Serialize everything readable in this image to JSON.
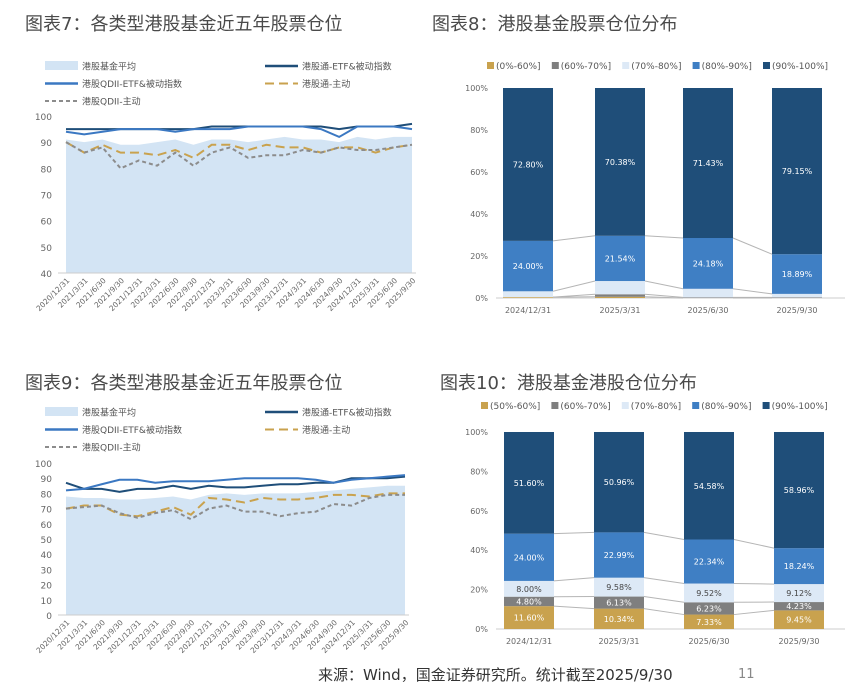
{
  "titles": {
    "chart7": "图表7：各类型港股基金近五年股票仓位",
    "chart8": "图表8：港股基金股票仓位分布",
    "chart9": "图表9：各类型港股基金近五年股票仓位",
    "chart10": "图表10：港股基金港股仓位分布"
  },
  "footer": {
    "source": "来源：Wind，国金证券研究所。统计截至2025/9/30",
    "page_number": "11"
  },
  "colors": {
    "avg_area": "#d3e4f4",
    "hkc_etf": "#1f4e79",
    "qdii_etf": "#3b78c2",
    "hkc_active": "#c9a24e",
    "qdii_active": "#8c8c8c",
    "seg_dark": "#1f4e79",
    "seg_mid": "#3f7fc4",
    "seg_light": "#dde9f6",
    "seg_gray": "#7f7f7f",
    "seg_gold": "#c9a24e"
  },
  "chart_data": [
    {
      "type": "line",
      "title": "图表7：各类型港股基金近五年股票仓位",
      "x": [
        "2020/12/31",
        "2021/3/31",
        "2021/6/30",
        "2021/9/30",
        "2021/12/31",
        "2022/3/31",
        "2022/6/30",
        "2022/9/30",
        "2022/12/31",
        "2023/3/31",
        "2023/6/30",
        "2023/9/30",
        "2023/12/31",
        "2024/3/31",
        "2024/6/30",
        "2024/9/30",
        "2024/12/31",
        "2025/3/31",
        "2025/6/30",
        "2025/9/30"
      ],
      "ylim": [
        40,
        100
      ],
      "yticks": [
        40,
        50,
        60,
        70,
        80,
        90,
        100
      ],
      "legend": "top",
      "series": [
        {
          "name": "港股基金平均",
          "style": "area",
          "values": [
            91,
            90,
            91,
            89,
            89,
            90,
            91,
            89,
            91,
            91,
            90,
            91,
            92,
            91,
            91,
            90,
            92,
            91,
            92,
            92
          ]
        },
        {
          "name": "港股通-ETF&被动指数",
          "style": "solid",
          "values": [
            95,
            95,
            95,
            95,
            95,
            95,
            95,
            95,
            96,
            96,
            96,
            96,
            96,
            96,
            96,
            95,
            96,
            96,
            96,
            97
          ]
        },
        {
          "name": "港股QDII-ETF&被动指数",
          "style": "solid",
          "values": [
            94,
            93,
            94,
            95,
            95,
            95,
            94,
            95,
            95,
            95,
            96,
            96,
            96,
            96,
            95,
            92,
            96,
            96,
            96,
            95
          ]
        },
        {
          "name": "港股通-主动",
          "style": "long-dash",
          "values": [
            90,
            86,
            89,
            86,
            86,
            85,
            87,
            84,
            89,
            89,
            87,
            89,
            88,
            88,
            86,
            88,
            88,
            86,
            88,
            89
          ]
        },
        {
          "name": "港股QDII-主动",
          "style": "short-dash",
          "values": [
            90,
            86,
            88,
            80,
            83,
            81,
            86,
            81,
            86,
            88,
            84,
            85,
            85,
            87,
            86,
            88,
            87,
            87,
            88,
            89
          ]
        }
      ]
    },
    {
      "type": "bar",
      "stacked": true,
      "title": "图表8：港股基金股票仓位分布",
      "categories": [
        "2024/12/31",
        "2025/3/31",
        "2025/6/30",
        "2025/9/30"
      ],
      "ylim": [
        0,
        100
      ],
      "yticks": [
        "0%",
        "20%",
        "40%",
        "60%",
        "80%",
        "100%"
      ],
      "legend": "top",
      "series": [
        {
          "name": "(0%-60%]",
          "values": [
            0.4,
            0.58,
            0,
            0
          ],
          "labels": [
            "",
            "",
            "",
            ""
          ]
        },
        {
          "name": "(60%-70%]",
          "values": [
            0,
            1.2,
            0.3,
            0.3
          ],
          "labels": [
            "",
            "",
            "",
            ""
          ]
        },
        {
          "name": "(70%-80%]",
          "values": [
            2.8,
            6.3,
            4.09,
            1.66
          ],
          "labels": [
            "",
            "",
            "",
            ""
          ]
        },
        {
          "name": "(80%-90%]",
          "values": [
            24.0,
            21.54,
            24.18,
            18.89
          ],
          "labels": [
            "24.00%",
            "21.54%",
            "24.18%",
            "18.89%"
          ]
        },
        {
          "name": "(90%-100%]",
          "values": [
            72.8,
            70.38,
            71.43,
            79.15
          ],
          "labels": [
            "72.80%",
            "70.38%",
            "71.43%",
            "79.15%"
          ]
        }
      ]
    },
    {
      "type": "line",
      "title": "图表9：各类型港股基金近五年股票仓位",
      "x": [
        "2020/12/31",
        "2021/3/31",
        "2021/6/30",
        "2021/9/30",
        "2021/12/31",
        "2022/3/31",
        "2022/6/30",
        "2022/9/30",
        "2022/12/31",
        "2023/3/31",
        "2023/6/30",
        "2023/9/30",
        "2023/12/31",
        "2024/3/31",
        "2024/6/30",
        "2024/9/30",
        "2024/12/31",
        "2025/3/31",
        "2025/6/30",
        "2025/9/30"
      ],
      "ylim": [
        0,
        100
      ],
      "yticks": [
        0,
        10,
        20,
        30,
        40,
        50,
        60,
        70,
        80,
        90,
        100
      ],
      "legend": "top",
      "series": [
        {
          "name": "港股基金平均",
          "style": "area",
          "values": [
            78,
            77,
            77,
            76,
            76,
            77,
            78,
            76,
            79,
            80,
            79,
            80,
            80,
            80,
            81,
            82,
            83,
            84,
            85,
            85
          ]
        },
        {
          "name": "港股通-ETF&被动指数",
          "style": "solid",
          "values": [
            87,
            83,
            83,
            81,
            83,
            83,
            85,
            83,
            85,
            84,
            84,
            85,
            86,
            86,
            87,
            87,
            90,
            90,
            90,
            91
          ]
        },
        {
          "name": "港股QDII-ETF&被动指数",
          "style": "solid",
          "values": [
            82,
            83,
            86,
            89,
            89,
            87,
            88,
            88,
            88,
            89,
            90,
            90,
            90,
            90,
            89,
            87,
            89,
            90,
            91,
            92
          ]
        },
        {
          "name": "港股通-主动",
          "style": "long-dash",
          "values": [
            70,
            72,
            72,
            66,
            65,
            68,
            71,
            66,
            77,
            76,
            74,
            77,
            76,
            76,
            77,
            79,
            79,
            78,
            80,
            80
          ]
        },
        {
          "name": "港股QDII-主动",
          "style": "short-dash",
          "values": [
            70,
            71,
            72,
            67,
            64,
            67,
            69,
            63,
            70,
            72,
            68,
            68,
            65,
            67,
            68,
            73,
            72,
            77,
            79,
            79
          ]
        }
      ]
    },
    {
      "type": "bar",
      "stacked": true,
      "title": "图表10：港股基金港股仓位分布",
      "categories": [
        "2024/12/31",
        "2025/3/31",
        "2025/6/30",
        "2025/9/30"
      ],
      "ylim": [
        0,
        100
      ],
      "yticks": [
        "0%",
        "20%",
        "40%",
        "60%",
        "80%",
        "100%"
      ],
      "legend": "top",
      "series": [
        {
          "name": "(50%-60%]",
          "values": [
            11.6,
            10.34,
            7.33,
            9.45
          ],
          "labels": [
            "11.60%",
            "10.34%",
            "7.33%",
            "9.45%"
          ]
        },
        {
          "name": "(60%-70%]",
          "values": [
            4.8,
            6.13,
            6.23,
            4.23
          ],
          "labels": [
            "4.80%",
            "6.13%",
            "6.23%",
            "4.23%"
          ]
        },
        {
          "name": "(70%-80%]",
          "values": [
            8.0,
            9.58,
            9.52,
            9.12
          ],
          "labels": [
            "8.00%",
            "9.58%",
            "9.52%",
            "9.12%"
          ]
        },
        {
          "name": "(80%-90%]",
          "values": [
            24.0,
            22.99,
            22.34,
            18.24
          ],
          "labels": [
            "24.00%",
            "22.99%",
            "22.34%",
            "18.24%"
          ]
        },
        {
          "name": "(90%-100%]",
          "values": [
            51.6,
            50.96,
            54.58,
            58.96
          ],
          "labels": [
            "51.60%",
            "50.96%",
            "54.58%",
            "58.96%"
          ]
        }
      ]
    }
  ]
}
